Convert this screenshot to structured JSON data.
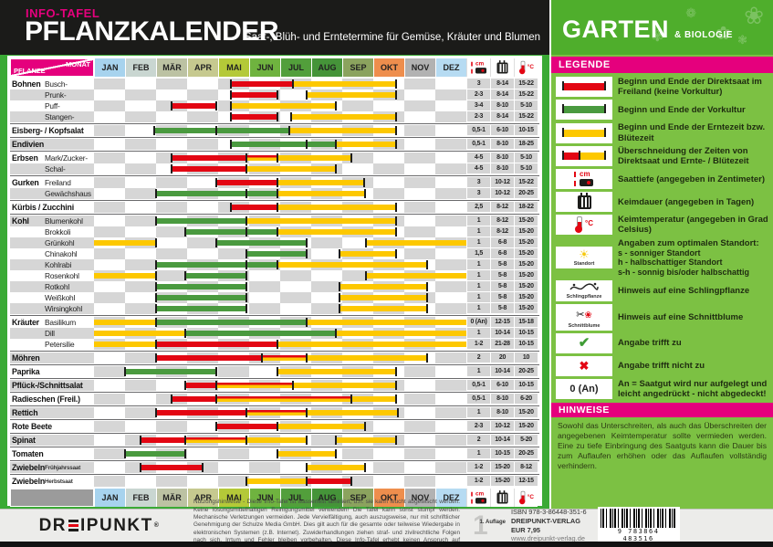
{
  "header": {
    "kicker": "INFO-TAFEL",
    "title": "PFLANZKALENDER",
    "subtitle": "Saat-, Blüh- und Erntetermine für Gemüse, Kräuter und Blumen",
    "brand_main": "GARTEN",
    "brand_sub": "& BIOLOGIE"
  },
  "table": {
    "corner_top": "MONAT",
    "corner_bottom": "PFLANZE"
  },
  "months": [
    {
      "label": "JAN",
      "color": "#a7d3ee"
    },
    {
      "label": "FEB",
      "color": "#c9d6d1"
    },
    {
      "label": "MÄR",
      "color": "#bcc2a3"
    },
    {
      "label": "APR",
      "color": "#c6c98f"
    },
    {
      "label": "MAI",
      "color": "#b4c938"
    },
    {
      "label": "JUN",
      "color": "#6fb33f"
    },
    {
      "label": "JUL",
      "color": "#529f3b"
    },
    {
      "label": "AUG",
      "color": "#459439"
    },
    {
      "label": "SEP",
      "color": "#8ba35e"
    },
    {
      "label": "OKT",
      "color": "#ee8e4d"
    },
    {
      "label": "NOV",
      "color": "#b2b2b2"
    },
    {
      "label": "DEZ",
      "color": "#b6dbf2"
    }
  ],
  "colors": {
    "magenta": "#e5007d",
    "frame_green": "#3aaa35",
    "legend_green": "#7cc143",
    "bar_red": "#e30613",
    "bar_green": "#4a9a3f",
    "bar_yellow": "#fdc800"
  },
  "chart_data": {
    "type": "table",
    "title": "Pflanzkalender – Saat-, Blüh- und Erntetermine",
    "month_scale": "start/end in Monaten, 0 = 1. Januar, 12 = 31. Dezember",
    "segment_meaning": {
      "red": "Direktsaat im Freiland",
      "green": "Vorkultur",
      "yellow": "Erntezeit bzw. Blütezeit",
      "red_yellow": "Überschneidung von Direktsaat und Ernte-/Blütezeit"
    },
    "value_columns": [
      "Saattiefe (cm)",
      "Keimdauer (Tage)",
      "Keimtemperatur (°C)"
    ],
    "rows": [
      {
        "group": "Bohnen",
        "sub": "Busch-",
        "new_group": true,
        "segments": [
          {
            "color": "red",
            "start": 4.4,
            "end": 6.4
          },
          {
            "color": "yellow",
            "start": 6.4,
            "end": 9.75
          }
        ],
        "cm": "3",
        "kd": "8-14",
        "kt": "15-22"
      },
      {
        "sub": "Prunk-",
        "segments": [
          {
            "color": "red",
            "start": 4.4,
            "end": 5.9
          },
          {
            "color": "yellow",
            "start": 6.85,
            "end": 9.75
          }
        ],
        "cm": "2-3",
        "kd": "8-14",
        "kt": "15-22"
      },
      {
        "sub": "Puff-",
        "segments": [
          {
            "color": "red",
            "start": 2.5,
            "end": 3.95
          },
          {
            "color": "yellow",
            "start": 4.4,
            "end": 7.8
          }
        ],
        "cm": "3-4",
        "kd": "8-10",
        "kt": "5-10"
      },
      {
        "sub": "Stangen-",
        "segments": [
          {
            "color": "red",
            "start": 4.4,
            "end": 5.9
          },
          {
            "color": "yellow",
            "start": 6.35,
            "end": 9.75
          }
        ],
        "cm": "2-3",
        "kd": "8-14",
        "kt": "15-22"
      },
      {
        "group": "Eisberg- / Kopfsalat",
        "new_group": true,
        "segments": [
          {
            "color": "green",
            "start": 1.95,
            "end": 3.95
          },
          {
            "color": "green",
            "start": 3.95,
            "end": 6.3
          },
          {
            "color": "yellow",
            "start": 6.3,
            "end": 9.75
          }
        ],
        "cm": "0,5-1",
        "kd": "6-10",
        "kt": "10-15"
      },
      {
        "group": "Endivien",
        "new_group": true,
        "segments": [
          {
            "color": "green",
            "start": 4.4,
            "end": 6.85
          },
          {
            "color": "green",
            "start": 6.85,
            "end": 7.8
          },
          {
            "color": "yellow",
            "start": 7.8,
            "end": 9.75
          }
        ],
        "cm": "0,5-1",
        "kd": "8-10",
        "kt": "18-25"
      },
      {
        "group": "Erbsen",
        "sub": "Mark/Zucker-",
        "new_group": true,
        "segments": [
          {
            "color": "red",
            "start": 2.5,
            "end": 4.9
          },
          {
            "color": "red_yellow",
            "start": 4.9,
            "end": 5.9
          },
          {
            "color": "yellow",
            "start": 5.9,
            "end": 8.3
          }
        ],
        "cm": "4-5",
        "kd": "8-10",
        "kt": "5-10"
      },
      {
        "sub": "Schal-",
        "segments": [
          {
            "color": "red",
            "start": 2.5,
            "end": 4.9
          },
          {
            "color": "yellow",
            "start": 4.9,
            "end": 7.8
          }
        ],
        "cm": "4-5",
        "kd": "8-10",
        "kt": "5-10"
      },
      {
        "group": "Gurken",
        "sub": "Freiland",
        "new_group": true,
        "segments": [
          {
            "color": "red",
            "start": 3.95,
            "end": 5.9
          },
          {
            "color": "yellow",
            "start": 5.9,
            "end": 8.7
          }
        ],
        "cm": "3",
        "kd": "10-12",
        "kt": "15-22"
      },
      {
        "sub": "Gewächshaus",
        "segments": [
          {
            "color": "green",
            "start": 2,
            "end": 4.9
          },
          {
            "color": "green",
            "start": 4.9,
            "end": 5.9
          },
          {
            "color": "yellow",
            "start": 5.9,
            "end": 8.75
          }
        ],
        "cm": "3",
        "kd": "10-12",
        "kt": "20-25"
      },
      {
        "group": "Kürbis / Zucchini",
        "new_group": true,
        "segments": [
          {
            "color": "red",
            "start": 4.4,
            "end": 5.9
          },
          {
            "color": "yellow",
            "start": 5.9,
            "end": 9.75
          }
        ],
        "cm": "2,5",
        "kd": "8-12",
        "kt": "18-22"
      },
      {
        "group": "Kohl",
        "sub": "Blumenkohl",
        "new_group": true,
        "segments": [
          {
            "color": "green",
            "start": 2,
            "end": 4.9
          },
          {
            "color": "yellow",
            "start": 4.9,
            "end": 9.75
          }
        ],
        "cm": "1",
        "kd": "8-12",
        "kt": "15-20"
      },
      {
        "sub": "Brokkoli",
        "segments": [
          {
            "color": "green",
            "start": 2.95,
            "end": 4.9
          },
          {
            "color": "green",
            "start": 4.9,
            "end": 5.9
          },
          {
            "color": "yellow",
            "start": 5.9,
            "end": 9.75
          }
        ],
        "cm": "1",
        "kd": "8-12",
        "kt": "15-20"
      },
      {
        "sub": "Grünkohl",
        "segments": [
          {
            "color": "yellow",
            "start": 0,
            "end": 2,
            "open_start": true
          },
          {
            "color": "green",
            "start": 3.95,
            "end": 6.85
          },
          {
            "color": "yellow",
            "start": 8.75,
            "end": 12,
            "open_end": true
          }
        ],
        "cm": "1",
        "kd": "6-8",
        "kt": "15-20"
      },
      {
        "sub": "Chinakohl",
        "segments": [
          {
            "color": "green",
            "start": 4.9,
            "end": 6.85
          },
          {
            "color": "yellow",
            "start": 7.9,
            "end": 9.75
          }
        ],
        "cm": "1,5",
        "kd": "6-8",
        "kt": "15-20"
      },
      {
        "sub": "Kohlrabi",
        "segments": [
          {
            "color": "green",
            "start": 2,
            "end": 4.9
          },
          {
            "color": "green",
            "start": 4.9,
            "end": 5.9
          },
          {
            "color": "yellow",
            "start": 5.9,
            "end": 10.75
          }
        ],
        "cm": "1",
        "kd": "5-8",
        "kt": "15-20"
      },
      {
        "sub": "Rosenkohl",
        "segments": [
          {
            "color": "yellow",
            "start": 0,
            "end": 2,
            "open_start": true
          },
          {
            "color": "green",
            "start": 2.95,
            "end": 4.9
          },
          {
            "color": "yellow",
            "start": 8.75,
            "end": 12,
            "open_end": true
          }
        ],
        "cm": "1",
        "kd": "5-8",
        "kt": "15-20"
      },
      {
        "sub": "Rotkohl",
        "segments": [
          {
            "color": "green",
            "start": 2,
            "end": 4.9
          },
          {
            "color": "yellow",
            "start": 7.9,
            "end": 10.75
          }
        ],
        "cm": "1",
        "kd": "5-8",
        "kt": "15-20"
      },
      {
        "sub": "Weißkohl",
        "segments": [
          {
            "color": "green",
            "start": 2,
            "end": 4.9
          },
          {
            "color": "yellow",
            "start": 7.9,
            "end": 10.75
          }
        ],
        "cm": "1",
        "kd": "5-8",
        "kt": "15-20"
      },
      {
        "sub": "Wirsingkohl",
        "segments": [
          {
            "color": "green",
            "start": 2,
            "end": 4.9
          },
          {
            "color": "yellow",
            "start": 7.9,
            "end": 10.75
          }
        ],
        "cm": "1",
        "kd": "5-8",
        "kt": "15-20"
      },
      {
        "group": "Kräuter",
        "sub": "Basilikum",
        "new_group": true,
        "segments": [
          {
            "color": "yellow",
            "start": 0,
            "end": 12,
            "open_start": true,
            "open_end": true
          },
          {
            "color": "green",
            "start": 2,
            "end": 6.85
          }
        ],
        "cm": "0 (An)",
        "kd": "12-15",
        "kt": "15-18"
      },
      {
        "sub": "Dill",
        "segments": [
          {
            "color": "yellow",
            "start": 0,
            "end": 12,
            "open_start": true,
            "open_end": true
          },
          {
            "color": "green",
            "start": 2.95,
            "end": 7.8
          }
        ],
        "cm": "1",
        "kd": "10-14",
        "kt": "10-15"
      },
      {
        "sub": "Petersilie",
        "segments": [
          {
            "color": "yellow",
            "start": 0,
            "end": 12,
            "open_start": true,
            "open_end": true
          },
          {
            "color": "red",
            "start": 2,
            "end": 5.9
          }
        ],
        "cm": "1-2",
        "kd": "21-28",
        "kt": "10-15"
      },
      {
        "group": "Möhren",
        "new_group": true,
        "segments": [
          {
            "color": "red",
            "start": 2,
            "end": 5.4
          },
          {
            "color": "red_yellow",
            "start": 5.4,
            "end": 6.85
          },
          {
            "color": "yellow",
            "start": 6.85,
            "end": 10.75
          }
        ],
        "cm": "2",
        "kd": "20",
        "kt": "10"
      },
      {
        "group": "Paprika",
        "new_group": true,
        "segments": [
          {
            "color": "green",
            "start": 1,
            "end": 3.95
          },
          {
            "color": "yellow",
            "start": 5.9,
            "end": 9.75
          }
        ],
        "cm": "1",
        "kd": "10-14",
        "kt": "20-25"
      },
      {
        "group": "Pflück-/Schnittsalat",
        "new_group": true,
        "segments": [
          {
            "color": "red",
            "start": 2.95,
            "end": 3.95
          },
          {
            "color": "red_yellow",
            "start": 3.95,
            "end": 6.4
          },
          {
            "color": "yellow",
            "start": 6.4,
            "end": 9.75
          }
        ],
        "cm": "0,5-1",
        "kd": "6-10",
        "kt": "10-15"
      },
      {
        "group": "Radieschen (Freil.)",
        "new_group": true,
        "segments": [
          {
            "color": "red",
            "start": 2.5,
            "end": 3.95
          },
          {
            "color": "red_yellow",
            "start": 3.95,
            "end": 8.3
          },
          {
            "color": "yellow",
            "start": 8.3,
            "end": 9.75
          }
        ],
        "cm": "0,5-1",
        "kd": "8-10",
        "kt": "6-20"
      },
      {
        "group": "Rettich",
        "new_group": true,
        "segments": [
          {
            "color": "red",
            "start": 2,
            "end": 4.9
          },
          {
            "color": "red_yellow",
            "start": 4.9,
            "end": 6.85
          },
          {
            "color": "yellow",
            "start": 6.85,
            "end": 9.8
          }
        ],
        "cm": "1",
        "kd": "8-10",
        "kt": "15-20"
      },
      {
        "group": "Rote Beete",
        "new_group": true,
        "segments": [
          {
            "color": "red",
            "start": 3.95,
            "end": 5.9
          },
          {
            "color": "yellow",
            "start": 5.9,
            "end": 8.75
          }
        ],
        "cm": "2-3",
        "kd": "10-12",
        "kt": "15-20"
      },
      {
        "group": "Spinat",
        "new_group": true,
        "segments": [
          {
            "color": "red",
            "start": 1.5,
            "end": 2.95
          },
          {
            "color": "red_yellow",
            "start": 2.95,
            "end": 4.9
          },
          {
            "color": "yellow",
            "start": 4.9,
            "end": 6.85
          },
          {
            "color": "yellow",
            "start": 7.8,
            "end": 9.75
          }
        ],
        "cm": "2",
        "kd": "10-14",
        "kt": "5-20"
      },
      {
        "group": "Tomaten",
        "new_group": true,
        "segments": [
          {
            "color": "green",
            "start": 1,
            "end": 2.95
          },
          {
            "color": "yellow",
            "start": 5.9,
            "end": 7.8
          }
        ],
        "cm": "1",
        "kd": "10-15",
        "kt": "20-25"
      },
      {
        "group": "Zwiebeln",
        "sub": "Frühjahrssaat",
        "small_sub": true,
        "new_group": true,
        "segments": [
          {
            "color": "red",
            "start": 1.5,
            "end": 3.5
          },
          {
            "color": "yellow",
            "start": 6.85,
            "end": 8.75
          }
        ],
        "cm": "1-2",
        "kd": "15-20",
        "kt": "8-12"
      },
      {
        "group": "Zwiebeln",
        "sub": "Herbstsaat",
        "small_sub": true,
        "new_group": true,
        "segments": [
          {
            "color": "yellow",
            "start": 4.9,
            "end": 6.85
          },
          {
            "color": "red",
            "start": 6.85,
            "end": 8.3
          }
        ],
        "cm": "1-2",
        "kd": "15-20",
        "kt": "12-15"
      }
    ]
  },
  "legend": {
    "title": "LEGENDE",
    "items": [
      {
        "icon": "bar-red",
        "text": "Beginn und Ende der Direktsaat im Freiland (keine Vorkultur)"
      },
      {
        "icon": "bar-green",
        "text": "Beginn und Ende der Vorkultur"
      },
      {
        "icon": "bar-yellow",
        "text": "Beginn und Ende der Erntezeit bzw. Blütezeit"
      },
      {
        "icon": "bar-overlap",
        "text": "Überschneidung der Zeiten von Direktsaat und Ernte- / Blütezeit"
      },
      {
        "icon": "cm",
        "text": "Saattiefe (angegeben in Zentimeter)"
      },
      {
        "icon": "calendar",
        "text": "Keimdauer (angegeben in Tagen)"
      },
      {
        "icon": "thermo",
        "text": "Keimtemperatur (angegeben in Grad Celsius)"
      },
      {
        "icon": "standort",
        "caption": "Standort",
        "text": "Angaben zum optimalen Standort:",
        "lines": [
          "s   -   sonniger Standort",
          "h   -   halbschattiger Standort",
          "s-h  -  sonnig bis/oder halbschattig"
        ]
      },
      {
        "icon": "schlingpflanze",
        "caption": "Schlingpflanze",
        "text": "Hinweis auf eine Schlingpflanze"
      },
      {
        "icon": "schnittblume",
        "caption": "Schnittblume",
        "text": "Hinweis auf eine Schnittblume"
      },
      {
        "icon": "check",
        "text": "Angabe trifft zu"
      },
      {
        "icon": "cross",
        "text": "Angabe trifft nicht zu"
      },
      {
        "icon": "text",
        "icon_text": "0 (An)",
        "text": "An = Saatgut wird nur aufgelegt und leicht angedrückt - nicht abgedeckt!"
      }
    ]
  },
  "hinweise": {
    "title": "HINWEISE",
    "text": "Sowohl das Unterschreiten, als auch das Überschreiten der angegebenen Keimtemperatur sollte vermieden werden. Eine zu tiefe Einbringung des Saatguts kann die Dauer bis zum Auflaufen erhöhen oder das Auflaufen vollständig verhindern."
  },
  "footer": {
    "logo_pre": "DR",
    "logo_post": "IPUNKT",
    "logo_reg": "®",
    "fineprint": "Nutzungshinweise - Diese Info-Tafel ist wasserfest laminiert, d.h. sie kann feucht abgewischt werden. Keine lösungsmittelhaltigen Reinigungsmittel verwenden! Die Tafel kann sonst stumpf werden. Mechanische Verletzungen vermeiden. Jede Vervielfältigung, auch auszugsweise, nur mit schriftlicher Genehmigung der Schulze Media GmbH. Dies gilt auch für die gesamte oder teilweise Wiedergabe in elektronischen Systemen (z.B. Internet). Zuwiderhandlungen ziehen straf- und zivilrechtliche Folgen nach sich. Irrtum und Fehler bleiben vorbehalten. Diese Info-Tafel erhebt keinen Anspruch auf Vollständigkeit. © DREIPUNKT-VERLAG, Schulze Media GmbH",
    "auflage_big": "1",
    "auflage_small": "1. Auflage",
    "isbn": "ISBN  978-3-86448-351-6",
    "publisher": "DREIPUNKT-VERLAG",
    "price": "EUR 7,95",
    "website": "www.dreipunkt-verlag.de",
    "barcode_digits": "9 783864 483516"
  }
}
